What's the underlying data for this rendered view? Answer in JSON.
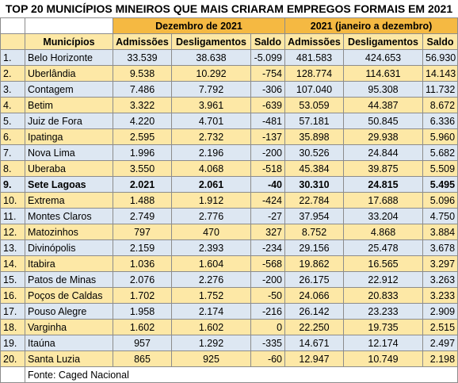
{
  "title": "TOP 20 MUNICÍPIOS MINEIROS QUE MAIS CRIARAM EMPREGOS FORMAIS EM 2021",
  "group_headers": {
    "month": "Dezembro de 2021",
    "year": "2021 (janeiro a dezembro)"
  },
  "columns": {
    "municipios": "Municípios",
    "admissoes": "Admissões",
    "desligamentos": "Desligamentos",
    "saldo": "Saldo"
  },
  "rows": [
    {
      "rank": "1.",
      "city": "Belo Horizonte",
      "m_adm": "33.539",
      "m_des": "38.638",
      "m_sal": "-5.099",
      "y_adm": "481.583",
      "y_des": "424.653",
      "y_sal": "56.930",
      "style": "blue"
    },
    {
      "rank": "2.",
      "city": "Uberlândia",
      "m_adm": "9.538",
      "m_des": "10.292",
      "m_sal": "-754",
      "y_adm": "128.774",
      "y_des": "114.631",
      "y_sal": "14.143",
      "style": "yellow"
    },
    {
      "rank": "3.",
      "city": "Contagem",
      "m_adm": "7.486",
      "m_des": "7.792",
      "m_sal": "-306",
      "y_adm": "107.040",
      "y_des": "95.308",
      "y_sal": "11.732",
      "style": "blue"
    },
    {
      "rank": "4.",
      "city": "Betim",
      "m_adm": "3.322",
      "m_des": "3.961",
      "m_sal": "-639",
      "y_adm": "53.059",
      "y_des": "44.387",
      "y_sal": "8.672",
      "style": "yellow"
    },
    {
      "rank": "5.",
      "city": "Juiz de Fora",
      "m_adm": "4.220",
      "m_des": "4.701",
      "m_sal": "-481",
      "y_adm": "57.181",
      "y_des": "50.845",
      "y_sal": "6.336",
      "style": "blue"
    },
    {
      "rank": "6.",
      "city": "Ipatinga",
      "m_adm": "2.595",
      "m_des": "2.732",
      "m_sal": "-137",
      "y_adm": "35.898",
      "y_des": "29.938",
      "y_sal": "5.960",
      "style": "yellow"
    },
    {
      "rank": "7.",
      "city": "Nova Lima",
      "m_adm": "1.996",
      "m_des": "2.196",
      "m_sal": "-200",
      "y_adm": "30.526",
      "y_des": "24.844",
      "y_sal": "5.682",
      "style": "blue"
    },
    {
      "rank": "8.",
      "city": "Uberaba",
      "m_adm": "3.550",
      "m_des": "4.068",
      "m_sal": "-518",
      "y_adm": "45.384",
      "y_des": "39.875",
      "y_sal": "5.509",
      "style": "yellow"
    },
    {
      "rank": "9.",
      "city": "Sete Lagoas",
      "m_adm": "2.021",
      "m_des": "2.061",
      "m_sal": "-40",
      "y_adm": "30.310",
      "y_des": "24.815",
      "y_sal": "5.495",
      "style": "blue bold"
    },
    {
      "rank": "10.",
      "city": "Extrema",
      "m_adm": "1.488",
      "m_des": "1.912",
      "m_sal": "-424",
      "y_adm": "22.784",
      "y_des": "17.688",
      "y_sal": "5.096",
      "style": "yellow"
    },
    {
      "rank": "11.",
      "city": "Montes Claros",
      "m_adm": "2.749",
      "m_des": "2.776",
      "m_sal": "-27",
      "y_adm": "37.954",
      "y_des": "33.204",
      "y_sal": "4.750",
      "style": "blue"
    },
    {
      "rank": "12.",
      "city": "Matozinhos",
      "m_adm": "797",
      "m_des": "470",
      "m_sal": "327",
      "y_adm": "8.752",
      "y_des": "4.868",
      "y_sal": "3.884",
      "style": "yellow"
    },
    {
      "rank": "13.",
      "city": "Divinópolis",
      "m_adm": "2.159",
      "m_des": "2.393",
      "m_sal": "-234",
      "y_adm": "29.156",
      "y_des": "25.478",
      "y_sal": "3.678",
      "style": "blue"
    },
    {
      "rank": "14.",
      "city": "Itabira",
      "m_adm": "1.036",
      "m_des": "1.604",
      "m_sal": "-568",
      "y_adm": "19.862",
      "y_des": "16.565",
      "y_sal": "3.297",
      "style": "yellow"
    },
    {
      "rank": "15.",
      "city": "Patos de Minas",
      "m_adm": "2.076",
      "m_des": "2.276",
      "m_sal": "-200",
      "y_adm": "26.175",
      "y_des": "22.912",
      "y_sal": "3.263",
      "style": "blue"
    },
    {
      "rank": "16.",
      "city": "Poços de Caldas",
      "m_adm": "1.702",
      "m_des": "1.752",
      "m_sal": "-50",
      "y_adm": "24.066",
      "y_des": "20.833",
      "y_sal": "3.233",
      "style": "yellow"
    },
    {
      "rank": "17.",
      "city": "Pouso Alegre",
      "m_adm": "1.958",
      "m_des": "2.174",
      "m_sal": "-216",
      "y_adm": "26.142",
      "y_des": "23.233",
      "y_sal": "2.909",
      "style": "blue"
    },
    {
      "rank": "18.",
      "city": "Varginha",
      "m_adm": "1.602",
      "m_des": "1.602",
      "m_sal": "0",
      "y_adm": "22.250",
      "y_des": "19.735",
      "y_sal": "2.515",
      "style": "yellow"
    },
    {
      "rank": "19.",
      "city": "Itaúna",
      "m_adm": "957",
      "m_des": "1.292",
      "m_sal": "-335",
      "y_adm": "14.671",
      "y_des": "12.174",
      "y_sal": "2.497",
      "style": "blue"
    },
    {
      "rank": "20.",
      "city": "Santa Luzia",
      "m_adm": "865",
      "m_des": "925",
      "m_sal": "-60",
      "y_adm": "12.947",
      "y_des": "10.749",
      "y_sal": "2.198",
      "style": "yellow"
    }
  ],
  "source": "Fonte: Caged Nacional",
  "colors": {
    "header_orange": "#f5b942",
    "row_yellow": "#fde8a6",
    "row_blue": "#dde7f2"
  }
}
